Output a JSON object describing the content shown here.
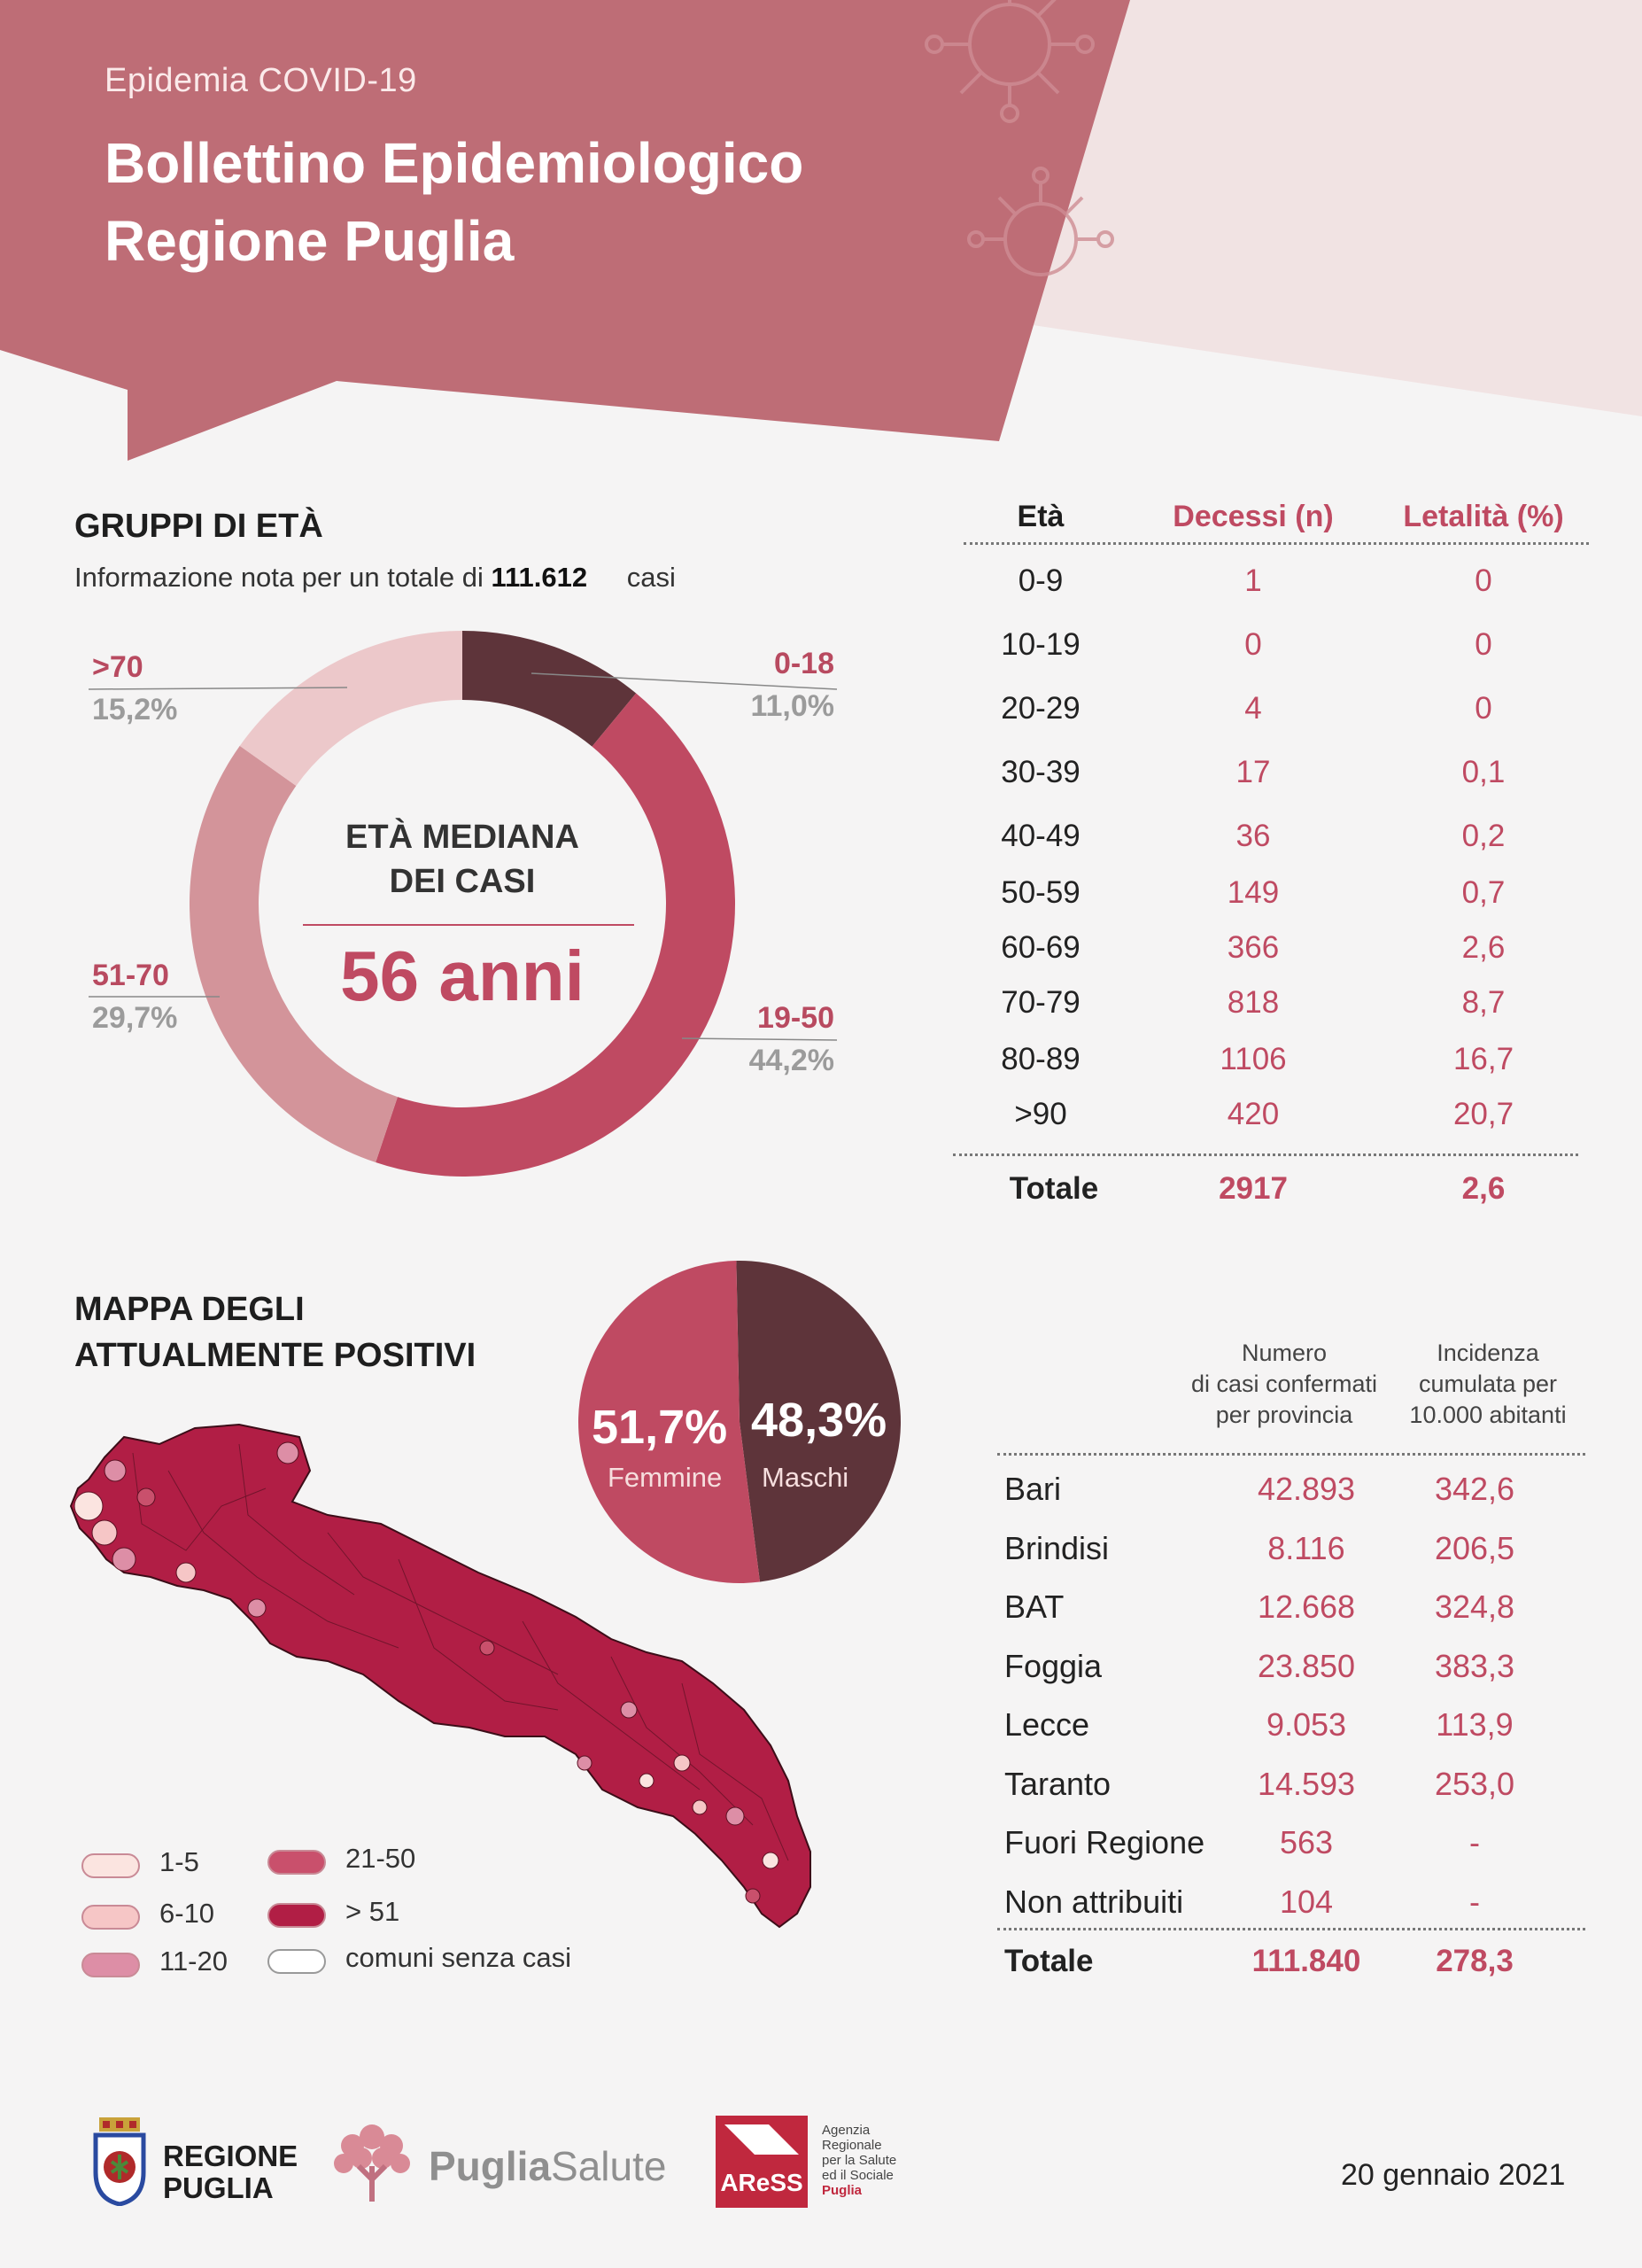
{
  "header": {
    "kicker": "Epidemia COVID-19",
    "title_line1": "Bollettino Epidemiologico",
    "title_line2": "Regione Puglia"
  },
  "age_groups": {
    "title": "GRUPPI DI ETÀ",
    "subtitle_prefix": "Informazione nota per un totale di",
    "subtitle_total": "111.612",
    "subtitle_suffix": "casi",
    "center_title_line1": "ETÀ MEDIANA",
    "center_title_line2": "DEI CASI",
    "center_value": "56 anni",
    "segments": [
      {
        "label": "0-18",
        "pct_text": "11,0%",
        "value": 11.0,
        "color": "#5e343a"
      },
      {
        "label": "19-50",
        "pct_text": "44,2%",
        "value": 44.2,
        "color": "#bf4a62"
      },
      {
        "label": "51-70",
        "pct_text": "29,7%",
        "value": 29.7,
        "color": "#d3949a"
      },
      {
        "label": ">70",
        "pct_text": "15,2%",
        "value": 15.2,
        "color": "#ecc8ca"
      }
    ]
  },
  "deaths_table": {
    "headers": [
      "Età",
      "Decessi (n)",
      "Letalità (%)"
    ],
    "rows": [
      [
        "0-9",
        "1",
        "0"
      ],
      [
        "10-19",
        "0",
        "0"
      ],
      [
        "20-29",
        "4",
        "0"
      ],
      [
        "30-39",
        "17",
        "0,1"
      ],
      [
        "40-49",
        "36",
        "0,2"
      ],
      [
        "50-59",
        "149",
        "0,7"
      ],
      [
        "60-69",
        "366",
        "2,6"
      ],
      [
        "70-79",
        "818",
        "8,7"
      ],
      [
        "80-89",
        "1106",
        "16,7"
      ],
      [
        ">90",
        "420",
        "20,7"
      ]
    ],
    "total": [
      "Totale",
      "2917",
      "2,6"
    ]
  },
  "map": {
    "title_line1": "MAPPA DEGLI",
    "title_line2": "ATTUALMENTE POSITIVI",
    "legend": [
      {
        "label": "1-5",
        "color": "#fbe4e0"
      },
      {
        "label": "6-10",
        "color": "#f6c6c6"
      },
      {
        "label": "11-20",
        "color": "#dd8ea6"
      },
      {
        "label": "21-50",
        "color": "#c9506c"
      },
      {
        "label": "> 51",
        "color": "#b11e45"
      },
      {
        "label": "comuni senza casi",
        "color": "#ffffff"
      }
    ]
  },
  "gender": {
    "female_pct": "51,7%",
    "female_label": "Femmine",
    "female_value": 51.7,
    "female_color": "#bf4a62",
    "male_pct": "48,3%",
    "male_label": "Maschi",
    "male_value": 48.3,
    "male_color": "#5e343a"
  },
  "province_table": {
    "head_col2_line1": "Numero",
    "head_col2_line2": "di casi confermati",
    "head_col2_line3": "per provincia",
    "head_col3_line1": "Incidenza",
    "head_col3_line2": "cumulata per",
    "head_col3_line3": "10.000 abitanti",
    "rows": [
      [
        "Bari",
        "42.893",
        "342,6"
      ],
      [
        "Brindisi",
        "8.116",
        "206,5"
      ],
      [
        "BAT",
        "12.668",
        "324,8"
      ],
      [
        "Foggia",
        "23.850",
        "383,3"
      ],
      [
        "Lecce",
        "9.053",
        "113,9"
      ],
      [
        "Taranto",
        "14.593",
        "253,0"
      ],
      [
        "Fuori Regione",
        "563",
        "-"
      ],
      [
        "Non attribuiti",
        "104",
        "-"
      ]
    ],
    "total": [
      "Totale",
      "111.840",
      "278,3"
    ]
  },
  "footer": {
    "regione_line1": "REGIONE",
    "regione_line2": "PUGLIA",
    "puglia": "Puglia",
    "salute": "Salute",
    "aress_logo": "AReSS",
    "aress_line1": "Agenzia",
    "aress_line2": "Regionale",
    "aress_line3": "per la Salute",
    "aress_line4": "ed il Sociale",
    "aress_line5": "Puglia",
    "date": "20 gennaio 2021"
  },
  "colors": {
    "header_dark": "#be6d76",
    "header_light": "#f1e3e3",
    "accent": "#bf4a62"
  }
}
